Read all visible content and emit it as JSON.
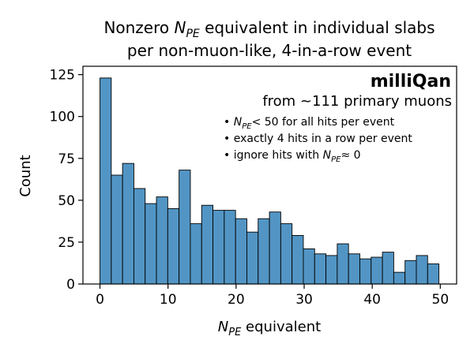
{
  "chart_data": {
    "type": "bar",
    "title_lines": [
      {
        "pre": "Nonzero ",
        "var": "N",
        "sub": "PE",
        "post": " equivalent in individual slabs"
      },
      {
        "pre": "per non-muon-like, 4-in-a-row event",
        "var": "",
        "sub": "",
        "post": ""
      }
    ],
    "xlabel": {
      "var": "N",
      "sub": "PE",
      "post": " equivalent"
    },
    "ylabel": "Count",
    "xlim": [
      -2.5,
      52.4
    ],
    "ylim": [
      0,
      130
    ],
    "xticks": [
      0,
      10,
      20,
      30,
      40,
      50
    ],
    "yticks": [
      0,
      25,
      50,
      75,
      100,
      125
    ],
    "grid": false,
    "bin_edges": [
      0,
      1.66,
      3.32,
      4.98,
      6.64,
      8.3,
      9.96,
      11.62,
      13.28,
      14.94,
      16.6,
      18.26,
      19.92,
      21.58,
      23.24,
      24.9,
      26.56,
      28.22,
      29.88,
      31.54,
      33.2,
      34.86,
      36.52,
      38.18,
      39.84,
      41.5,
      43.16,
      44.82,
      46.48,
      48.14,
      49.8
    ],
    "values": [
      123,
      65,
      72,
      57,
      48,
      52,
      45,
      68,
      36,
      47,
      44,
      44,
      39,
      31,
      39,
      43,
      36,
      29,
      21,
      18,
      17,
      24,
      18,
      15,
      16,
      19,
      7,
      14,
      17,
      12
    ],
    "bar_color": "#5295c4",
    "edge_color": "#000000",
    "brand": "milliQan",
    "source_note": "from ~111 primary muons",
    "notes": [
      {
        "pre": "• ",
        "var": "N",
        "sub": "PE",
        "post": "< 50 for all hits per event"
      },
      {
        "pre": "• exactly 4 hits in a row per event",
        "var": "",
        "sub": "",
        "post": ""
      },
      {
        "pre": "• ignore hits with ",
        "var": "N",
        "sub": "PE",
        "post": "≈ 0"
      }
    ]
  }
}
